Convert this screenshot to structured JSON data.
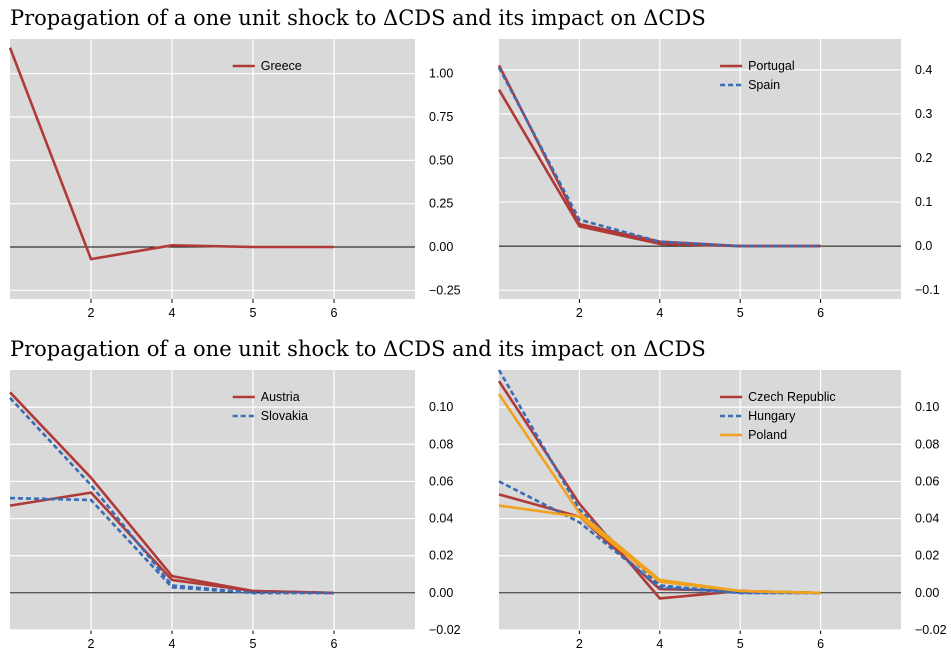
{
  "section_titles": [
    "Propagation of a one unit shock to ΔCDS and its impact on ΔCDS",
    "Propagation of a one unit shock to ΔCDS and its impact on ΔCDS"
  ],
  "colors": {
    "panel_bg": "#d9d9d9",
    "grid": "#ffffff",
    "zero_line": "#000000",
    "red": "#b03a38",
    "blue": "#3a6cb5",
    "orange": "#f0a21e"
  },
  "chart_data": [
    {
      "type": "line",
      "title": "",
      "x_ticks": [
        "2",
        "4",
        "5",
        "6"
      ],
      "x_tick_positions": [
        2,
        3,
        4,
        5
      ],
      "xlim": [
        1,
        6
      ],
      "ylim": [
        -0.3,
        1.2
      ],
      "y_ticks": [
        1.0,
        0.75,
        0.5,
        0.25,
        0.0,
        -0.25
      ],
      "y_tick_labels": [
        "1.00",
        "0.75",
        "0.50",
        "0.25",
        "0.00",
        "−0.25"
      ],
      "grid": true,
      "legend_position": "top-center",
      "series": [
        {
          "name": "Greece",
          "color": "#b03a38",
          "dash": "solid",
          "show_in_legend": true,
          "x": [
            1,
            2,
            3,
            4,
            5
          ],
          "y": [
            1.15,
            -0.07,
            0.01,
            0.0,
            0.0
          ]
        }
      ]
    },
    {
      "type": "line",
      "title": "",
      "x_ticks": [
        "2",
        "4",
        "5",
        "6"
      ],
      "x_tick_positions": [
        2,
        3,
        4,
        5
      ],
      "xlim": [
        1,
        6
      ],
      "ylim": [
        -0.12,
        0.47
      ],
      "y_ticks": [
        0.4,
        0.3,
        0.2,
        0.1,
        0.0,
        -0.1
      ],
      "y_tick_labels": [
        "0.4",
        "0.3",
        "0.2",
        "0.1",
        "0.0",
        "−0.1"
      ],
      "grid": true,
      "legend_position": "top-center",
      "series": [
        {
          "name": "Portugal",
          "color": "#b03a38",
          "dash": "solid",
          "show_in_legend": true,
          "x": [
            1,
            2,
            3,
            4,
            5
          ],
          "y": [
            0.41,
            0.05,
            0.01,
            0.0,
            0.0
          ]
        },
        {
          "name": "Portugal",
          "color": "#b03a38",
          "dash": "solid",
          "show_in_legend": false,
          "x": [
            1,
            2,
            3,
            4,
            5
          ],
          "y": [
            0.355,
            0.045,
            0.005,
            0.0,
            0.0
          ]
        },
        {
          "name": "Spain",
          "color": "#3a6cb5",
          "dash": "dashed",
          "show_in_legend": true,
          "x": [
            1,
            2,
            3,
            4,
            5
          ],
          "y": [
            0.405,
            0.06,
            0.01,
            0.0,
            0.0
          ]
        }
      ]
    },
    {
      "type": "line",
      "title": "",
      "x_ticks": [
        "2",
        "4",
        "5",
        "6"
      ],
      "x_tick_positions": [
        2,
        3,
        4,
        5
      ],
      "xlim": [
        1,
        6
      ],
      "ylim": [
        -0.02,
        0.12
      ],
      "y_ticks": [
        0.1,
        0.08,
        0.06,
        0.04,
        0.02,
        0.0,
        -0.02
      ],
      "y_tick_labels": [
        "0.10",
        "0.08",
        "0.06",
        "0.04",
        "0.02",
        "0.00",
        "−0.02"
      ],
      "grid": true,
      "legend_position": "top-center",
      "series": [
        {
          "name": "Austria",
          "color": "#b03a38",
          "dash": "solid",
          "show_in_legend": true,
          "x": [
            1,
            2,
            3,
            4,
            5
          ],
          "y": [
            0.108,
            0.062,
            0.009,
            0.001,
            0.0
          ]
        },
        {
          "name": "Austria",
          "color": "#b03a38",
          "dash": "solid",
          "show_in_legend": false,
          "x": [
            1,
            2,
            3,
            4,
            5
          ],
          "y": [
            0.047,
            0.054,
            0.007,
            0.001,
            0.0
          ]
        },
        {
          "name": "Slovakia",
          "color": "#3a6cb5",
          "dash": "dashed",
          "show_in_legend": true,
          "x": [
            1,
            2,
            3,
            4,
            5
          ],
          "y": [
            0.105,
            0.058,
            0.004,
            0.0,
            0.0
          ]
        },
        {
          "name": "Slovakia",
          "color": "#3a6cb5",
          "dash": "dashed",
          "show_in_legend": false,
          "x": [
            1,
            2,
            3,
            4,
            5
          ],
          "y": [
            0.051,
            0.05,
            0.003,
            0.0,
            0.0
          ]
        }
      ]
    },
    {
      "type": "line",
      "title": "",
      "x_ticks": [
        "2",
        "4",
        "5",
        "6"
      ],
      "x_tick_positions": [
        2,
        3,
        4,
        5
      ],
      "xlim": [
        1,
        6
      ],
      "ylim": [
        -0.02,
        0.12
      ],
      "y_ticks": [
        0.1,
        0.08,
        0.06,
        0.04,
        0.02,
        0.0,
        -0.02
      ],
      "y_tick_labels": [
        "0.10",
        "0.08",
        "0.06",
        "0.04",
        "0.02",
        "0.00",
        "−0.02"
      ],
      "grid": true,
      "legend_position": "top-center",
      "series": [
        {
          "name": "Czech Republic",
          "color": "#b03a38",
          "dash": "solid",
          "show_in_legend": true,
          "x": [
            1,
            2,
            3,
            4,
            5
          ],
          "y": [
            0.114,
            0.048,
            -0.003,
            0.001,
            0.0
          ]
        },
        {
          "name": "Czech Republic",
          "color": "#b03a38",
          "dash": "solid",
          "show_in_legend": false,
          "x": [
            1,
            2,
            3,
            4,
            5
          ],
          "y": [
            0.053,
            0.041,
            0.002,
            0.001,
            0.0
          ]
        },
        {
          "name": "Hungary",
          "color": "#3a6cb5",
          "dash": "dashed",
          "show_in_legend": true,
          "x": [
            1,
            2,
            3,
            4,
            5
          ],
          "y": [
            0.12,
            0.045,
            0.004,
            0.0,
            0.0
          ]
        },
        {
          "name": "Hungary",
          "color": "#3a6cb5",
          "dash": "dashed",
          "show_in_legend": false,
          "x": [
            1,
            2,
            3,
            4,
            5
          ],
          "y": [
            0.06,
            0.038,
            0.003,
            0.0,
            0.0
          ]
        },
        {
          "name": "Poland",
          "color": "#f0a21e",
          "dash": "solid",
          "show_in_legend": true,
          "x": [
            1,
            2,
            3,
            4,
            5
          ],
          "y": [
            0.107,
            0.043,
            0.007,
            0.001,
            0.0
          ]
        },
        {
          "name": "Poland",
          "color": "#f0a21e",
          "dash": "solid",
          "show_in_legend": false,
          "x": [
            1,
            2,
            3,
            4,
            5
          ],
          "y": [
            0.047,
            0.041,
            0.006,
            0.001,
            0.0
          ]
        }
      ]
    }
  ]
}
